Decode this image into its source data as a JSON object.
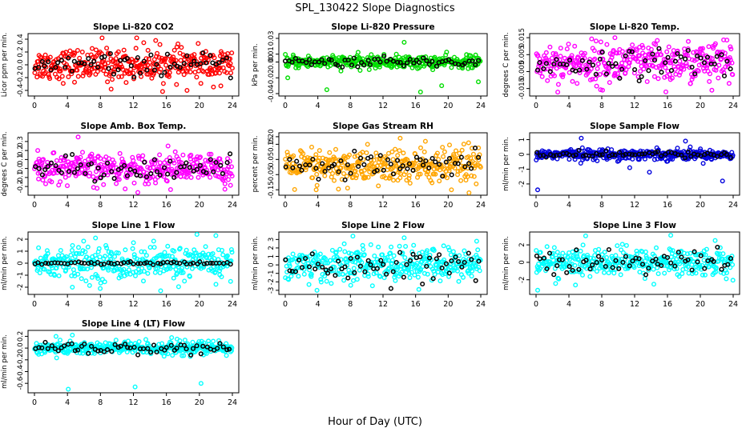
{
  "figure": {
    "title": "SPL_130422  Slope Diagnostics",
    "xlabel": "Hour of Day (UTC)"
  },
  "chart_data": [
    {
      "type": "scatter",
      "title": "Slope Li-820 CO2",
      "ylabel": "Licor ppm per min.",
      "color": "#ff0000",
      "xlim": [
        0,
        24
      ],
      "ylim": [
        -0.45,
        0.45
      ],
      "yticks": [
        -0.4,
        -0.2,
        0.0,
        0.2,
        0.4
      ],
      "ytick_labels": [
        "-0.4",
        "-0.2",
        "0.0",
        "0.2",
        "0.4"
      ],
      "xticks": [
        0,
        4,
        8,
        12,
        16,
        20,
        24
      ],
      "spread": 0.12,
      "black_spread": 0.08,
      "outliers": [
        [
          8.2,
          0.42
        ],
        [
          12.4,
          0.42
        ],
        [
          9.3,
          -0.38
        ],
        [
          22.6,
          -0.33
        ],
        [
          18.5,
          -0.4
        ],
        [
          14.7,
          0.38
        ]
      ]
    },
    {
      "type": "scatter",
      "title": "Slope Li-820 Pressure",
      "ylabel": "kPa per min.",
      "color": "#00dd00",
      "xlim": [
        0,
        24
      ],
      "ylim": [
        -0.04,
        0.033
      ],
      "yticks": [
        -0.04,
        -0.02,
        0.0,
        0.01,
        0.03
      ],
      "ytick_labels": [
        "-0.04",
        "-0.02",
        "0.00",
        "0.01",
        "0.03"
      ],
      "xticks": [
        0,
        4,
        8,
        12,
        16,
        20,
        24
      ],
      "spread": 0.004,
      "black_spread": 0.003,
      "outliers": [
        [
          14.6,
          0.025
        ],
        [
          5.1,
          -0.035
        ],
        [
          16.6,
          -0.038
        ],
        [
          23.7,
          -0.025
        ],
        [
          0.3,
          -0.02
        ],
        [
          19.2,
          -0.03
        ]
      ]
    },
    {
      "type": "scatter",
      "title": "Slope Li-820 Temp.",
      "ylabel": "degrees C per min.",
      "color": "#ff00ff",
      "xlim": [
        0,
        24
      ],
      "ylim": [
        -0.018,
        0.016
      ],
      "yticks": [
        -0.015,
        -0.005,
        0.005,
        0.015
      ],
      "ytick_labels": [
        "-0.015",
        "-0.005",
        "0.005",
        "0.015"
      ],
      "xticks": [
        0,
        4,
        8,
        12,
        16,
        20,
        24
      ],
      "spread": 0.006,
      "black_spread": 0.004,
      "outliers": [
        [
          8.1,
          -0.016
        ],
        [
          15.8,
          -0.017
        ],
        [
          21.4,
          -0.016
        ],
        [
          9.6,
          0.015
        ],
        [
          23.5,
          -0.012
        ]
      ]
    },
    {
      "type": "scatter",
      "title": "Slope Amb. Box Temp.",
      "ylabel": "degrees C per min.",
      "color": "#ff00ff",
      "xlim": [
        0,
        24
      ],
      "ylim": [
        -0.27,
        0.37
      ],
      "yticks": [
        -0.2,
        -0.1,
        0.0,
        0.1,
        0.2,
        0.3
      ],
      "ytick_labels": [
        "-0.2",
        "-0.1",
        "0.0",
        "0.1",
        "0.2",
        "0.3"
      ],
      "xticks": [
        0,
        4,
        8,
        12,
        16,
        20,
        24
      ],
      "spread": 0.08,
      "black_spread": 0.06,
      "outliers": [
        [
          5.3,
          0.35
        ],
        [
          23.1,
          -0.23
        ],
        [
          7.6,
          -0.22
        ],
        [
          16.2,
          0.25
        ],
        [
          0.4,
          0.2
        ]
      ]
    },
    {
      "type": "scatter",
      "title": "Slope Gas Stream RH",
      "ylabel": "percent per min.",
      "color": "#ffa500",
      "xlim": [
        0,
        24
      ],
      "ylim": [
        -0.17,
        0.21
      ],
      "yticks": [
        -0.15,
        -0.05,
        0.05,
        0.15,
        0.2
      ],
      "ytick_labels": [
        "-0.15",
        "-0.05",
        "0.05",
        "0.15",
        "0.20"
      ],
      "xticks": [
        0,
        4,
        8,
        12,
        16,
        20,
        24
      ],
      "spread": 0.06,
      "black_spread": 0.04,
      "outliers": [
        [
          14.1,
          0.19
        ],
        [
          17.2,
          0.17
        ],
        [
          22.5,
          0.16
        ],
        [
          3.8,
          -0.15
        ],
        [
          20.4,
          -0.15
        ]
      ]
    },
    {
      "type": "scatter",
      "title": "Slope Sample Flow",
      "ylabel": "ml/min per min.",
      "color": "#0000dd",
      "xlim": [
        0,
        24
      ],
      "ylim": [
        -2.6,
        1.3
      ],
      "yticks": [
        -2,
        -1,
        0,
        1
      ],
      "ytick_labels": [
        "-2",
        "-1",
        "0",
        "1"
      ],
      "xticks": [
        0,
        4,
        8,
        12,
        16,
        20,
        24
      ],
      "spread": 0.18,
      "black_spread": 0.1,
      "outliers": [
        [
          0.2,
          -2.4
        ],
        [
          5.5,
          1.1
        ],
        [
          22.7,
          -1.8
        ],
        [
          18.2,
          0.9
        ],
        [
          11.4,
          -0.9
        ],
        [
          13.8,
          -1.2
        ]
      ]
    },
    {
      "type": "scatter",
      "title": "Slope Line 1 Flow",
      "ylabel": "ml/min per min.",
      "color": "#00ffff",
      "xlim": [
        0,
        24
      ],
      "ylim": [
        -2.4,
        2.4
      ],
      "yticks": [
        -2,
        -1,
        0,
        1,
        2
      ],
      "ytick_labels": [
        "-2",
        "-1",
        "0",
        "1",
        "2"
      ],
      "xticks": [
        0,
        4,
        8,
        12,
        16,
        20,
        24
      ],
      "spread": 0.7,
      "black_spread": 0.06,
      "outliers": [
        [
          22.0,
          2.3
        ],
        [
          15.3,
          -2.3
        ],
        [
          4.6,
          -2.0
        ],
        [
          7.4,
          2.1
        ]
      ]
    },
    {
      "type": "scatter",
      "title": "Slope Line 2 Flow",
      "ylabel": "ml/min per min.",
      "color": "#00ffff",
      "xlim": [
        0,
        24
      ],
      "ylim": [
        -3.2,
        3.6
      ],
      "yticks": [
        -3,
        -2,
        -1,
        0,
        1,
        2,
        3
      ],
      "ytick_labels": [
        "-3",
        "-2",
        "-1",
        "0",
        "1",
        "2",
        "3"
      ],
      "xticks": [
        0,
        4,
        8,
        12,
        16,
        20,
        24
      ],
      "spread": 1.0,
      "black_spread": 0.9,
      "outliers": [
        [
          8.3,
          3.4
        ],
        [
          14.6,
          3.2
        ],
        [
          3.9,
          -3.0
        ],
        [
          16.4,
          -2.9
        ],
        [
          23.5,
          2.8
        ]
      ]
    },
    {
      "type": "scatter",
      "title": "Slope Line 3 Flow",
      "ylabel": "ml/min per min.",
      "color": "#00ffff",
      "xlim": [
        0,
        24
      ],
      "ylim": [
        -3.4,
        3.2
      ],
      "yticks": [
        -2,
        0,
        2
      ],
      "ytick_labels": [
        "-2",
        "0",
        "2"
      ],
      "xticks": [
        0,
        4,
        8,
        12,
        16,
        20,
        24
      ],
      "spread": 0.8,
      "black_spread": 0.7,
      "outliers": [
        [
          0.2,
          -3.2
        ],
        [
          16.4,
          3.1
        ],
        [
          21.8,
          2.5
        ],
        [
          4.8,
          -2.6
        ]
      ]
    },
    {
      "type": "scatter",
      "title": "Slope Line 4 (LT) Flow",
      "ylabel": "ml/min per min.",
      "color": "#00ffff",
      "xlim": [
        0,
        24
      ],
      "ylim": [
        -0.72,
        0.26
      ],
      "yticks": [
        -0.6,
        -0.4,
        -0.2,
        0.0,
        0.2
      ],
      "ytick_labels": [
        "-0.6",
        "-0.4",
        "-0.2",
        "0.0",
        "0.2"
      ],
      "xticks": [
        0,
        4,
        8,
        12,
        16,
        20,
        24
      ],
      "spread": 0.06,
      "black_spread": 0.05,
      "outliers": [
        [
          4.1,
          -0.7
        ],
        [
          12.2,
          -0.66
        ],
        [
          20.2,
          -0.6
        ],
        [
          4.6,
          0.22
        ]
      ]
    }
  ]
}
